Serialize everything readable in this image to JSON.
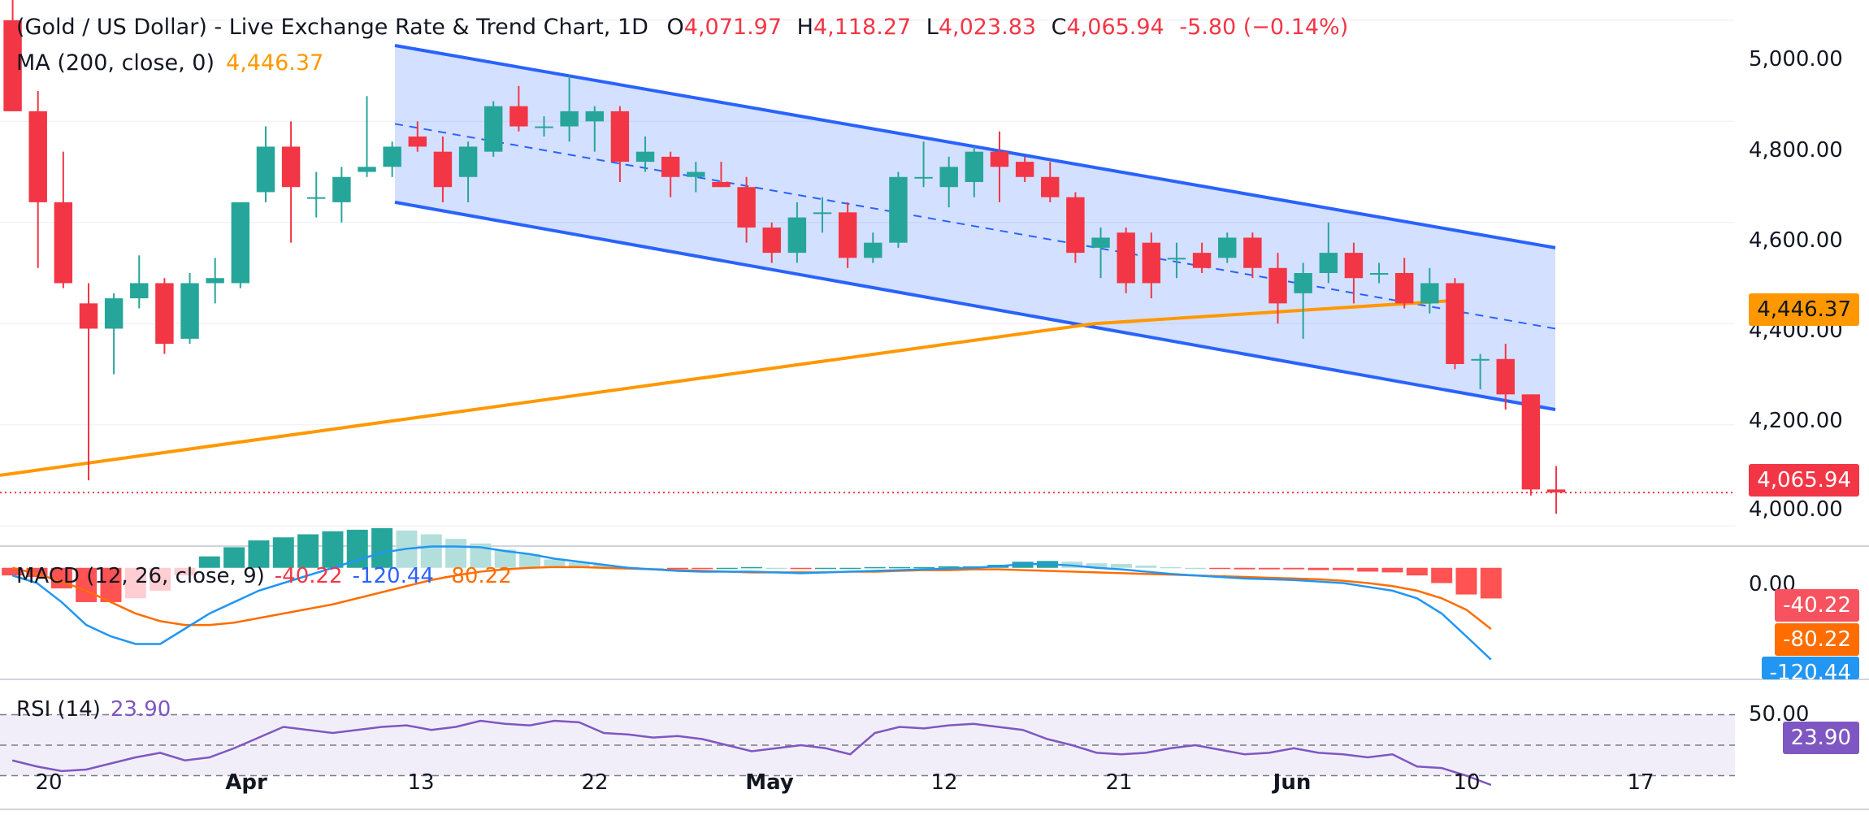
{
  "header": {
    "title": "(Gold / US Dollar) - Live Exchange Rate & Trend Chart, 1D",
    "open_label": "O",
    "open": "4,071.97",
    "high_label": "H",
    "high": "4,118.27",
    "low_label": "L",
    "low": "4,023.83",
    "close_label": "C",
    "close": "4,065.94",
    "change": "-5.80 (−0.14%)"
  },
  "ma": {
    "label": "MA (200, close, 0)",
    "value": "4,446.37"
  },
  "macd": {
    "label": "MACD (12, 26, close, 9)",
    "hist": "-40.22",
    "macd": "-120.44",
    "signal": "-80.22"
  },
  "rsi": {
    "label": "RSI (14)",
    "value": "23.90"
  },
  "price_tags": {
    "ma": "4,446.37",
    "last": "4,065.94",
    "macd_hist": "-40.22",
    "macd_signal": "-80.22",
    "macd_line": "-120.44",
    "rsi": "23.90"
  },
  "axis": {
    "y_ticks": [
      "5,000.00",
      "4,800.00",
      "4,600.00",
      "4,400.00",
      "4,200.00",
      "4,000.00"
    ],
    "macd_tick": "0.00",
    "rsi_tick": "50.00",
    "x_ticks": [
      {
        "label": "20",
        "bold": false
      },
      {
        "label": "Apr",
        "bold": true
      },
      {
        "label": "13",
        "bold": false
      },
      {
        "label": "22",
        "bold": false
      },
      {
        "label": "May",
        "bold": true
      },
      {
        "label": "12",
        "bold": false
      },
      {
        "label": "21",
        "bold": false
      },
      {
        "label": "Jun",
        "bold": true
      },
      {
        "label": "10",
        "bold": false
      },
      {
        "label": "17",
        "bold": false
      }
    ]
  },
  "colors": {
    "up": "#26a69a",
    "down": "#f23645",
    "ma": "#ff9800",
    "channel": "#2962ff",
    "macd": "#2196f3",
    "signal": "#ff6d00",
    "rsi": "#7e57c2"
  },
  "chart_data": {
    "type": "candlestick",
    "interval": "1D",
    "ylim": [
      3960,
      5040
    ],
    "candles": [
      {
        "o": 5000,
        "h": 5040,
        "l": 4820,
        "c": 4820
      },
      {
        "o": 4820,
        "h": 4860,
        "l": 4510,
        "c": 4640
      },
      {
        "o": 4640,
        "h": 4740,
        "l": 4470,
        "c": 4480
      },
      {
        "o": 4440,
        "h": 4480,
        "l": 4090,
        "c": 4390
      },
      {
        "o": 4390,
        "h": 4460,
        "l": 4300,
        "c": 4450
      },
      {
        "o": 4450,
        "h": 4535,
        "l": 4430,
        "c": 4480
      },
      {
        "o": 4480,
        "h": 4490,
        "l": 4340,
        "c": 4360
      },
      {
        "o": 4370,
        "h": 4500,
        "l": 4360,
        "c": 4480
      },
      {
        "o": 4480,
        "h": 4530,
        "l": 4440,
        "c": 4490
      },
      {
        "o": 4480,
        "h": 4640,
        "l": 4470,
        "c": 4640
      },
      {
        "o": 4660,
        "h": 4790,
        "l": 4640,
        "c": 4750
      },
      {
        "o": 4750,
        "h": 4800,
        "l": 4560,
        "c": 4670
      },
      {
        "o": 4650,
        "h": 4700,
        "l": 4610,
        "c": 4650
      },
      {
        "o": 4640,
        "h": 4710,
        "l": 4600,
        "c": 4690
      },
      {
        "o": 4700,
        "h": 4850,
        "l": 4690,
        "c": 4710
      },
      {
        "o": 4710,
        "h": 4760,
        "l": 4690,
        "c": 4750
      },
      {
        "o": 4770,
        "h": 4800,
        "l": 4740,
        "c": 4750
      },
      {
        "o": 4740,
        "h": 4770,
        "l": 4640,
        "c": 4670
      },
      {
        "o": 4690,
        "h": 4760,
        "l": 4640,
        "c": 4750
      },
      {
        "o": 4740,
        "h": 4840,
        "l": 4730,
        "c": 4830
      },
      {
        "o": 4830,
        "h": 4870,
        "l": 4780,
        "c": 4790
      },
      {
        "o": 4790,
        "h": 4810,
        "l": 4770,
        "c": 4790
      },
      {
        "o": 4790,
        "h": 4890,
        "l": 4760,
        "c": 4820
      },
      {
        "o": 4800,
        "h": 4830,
        "l": 4740,
        "c": 4820
      },
      {
        "o": 4820,
        "h": 4830,
        "l": 4680,
        "c": 4720
      },
      {
        "o": 4720,
        "h": 4770,
        "l": 4700,
        "c": 4740
      },
      {
        "o": 4730,
        "h": 4740,
        "l": 4650,
        "c": 4690
      },
      {
        "o": 4690,
        "h": 4720,
        "l": 4660,
        "c": 4700
      },
      {
        "o": 4680,
        "h": 4720,
        "l": 4670,
        "c": 4670
      },
      {
        "o": 4670,
        "h": 4690,
        "l": 4560,
        "c": 4590
      },
      {
        "o": 4590,
        "h": 4600,
        "l": 4520,
        "c": 4540
      },
      {
        "o": 4540,
        "h": 4640,
        "l": 4520,
        "c": 4610
      },
      {
        "o": 4620,
        "h": 4650,
        "l": 4580,
        "c": 4620
      },
      {
        "o": 4620,
        "h": 4640,
        "l": 4510,
        "c": 4530
      },
      {
        "o": 4530,
        "h": 4580,
        "l": 4520,
        "c": 4560
      },
      {
        "o": 4560,
        "h": 4700,
        "l": 4550,
        "c": 4690
      },
      {
        "o": 4690,
        "h": 4760,
        "l": 4670,
        "c": 4690
      },
      {
        "o": 4670,
        "h": 4730,
        "l": 4630,
        "c": 4710
      },
      {
        "o": 4680,
        "h": 4750,
        "l": 4650,
        "c": 4740
      },
      {
        "o": 4740,
        "h": 4780,
        "l": 4640,
        "c": 4710
      },
      {
        "o": 4720,
        "h": 4730,
        "l": 4680,
        "c": 4690
      },
      {
        "o": 4690,
        "h": 4720,
        "l": 4640,
        "c": 4650
      },
      {
        "o": 4650,
        "h": 4660,
        "l": 4520,
        "c": 4540
      },
      {
        "o": 4550,
        "h": 4590,
        "l": 4490,
        "c": 4570
      },
      {
        "o": 4580,
        "h": 4590,
        "l": 4460,
        "c": 4480
      },
      {
        "o": 4560,
        "h": 4580,
        "l": 4450,
        "c": 4480
      },
      {
        "o": 4530,
        "h": 4560,
        "l": 4490,
        "c": 4530
      },
      {
        "o": 4540,
        "h": 4560,
        "l": 4500,
        "c": 4510
      },
      {
        "o": 4530,
        "h": 4580,
        "l": 4520,
        "c": 4570
      },
      {
        "o": 4570,
        "h": 4580,
        "l": 4490,
        "c": 4510
      },
      {
        "o": 4510,
        "h": 4540,
        "l": 4400,
        "c": 4440
      },
      {
        "o": 4460,
        "h": 4520,
        "l": 4370,
        "c": 4500
      },
      {
        "o": 4500,
        "h": 4600,
        "l": 4480,
        "c": 4540
      },
      {
        "o": 4540,
        "h": 4560,
        "l": 4440,
        "c": 4490
      },
      {
        "o": 4500,
        "h": 4520,
        "l": 4480,
        "c": 4500
      },
      {
        "o": 4500,
        "h": 4530,
        "l": 4430,
        "c": 4440
      },
      {
        "o": 4440,
        "h": 4510,
        "l": 4420,
        "c": 4480
      },
      {
        "o": 4480,
        "h": 4490,
        "l": 4310,
        "c": 4320
      },
      {
        "o": 4330,
        "h": 4340,
        "l": 4270,
        "c": 4330
      },
      {
        "o": 4330,
        "h": 4360,
        "l": 4230,
        "c": 4260
      },
      {
        "o": 4260,
        "h": 4260,
        "l": 4060,
        "c": 4072
      },
      {
        "o": 4071.97,
        "h": 4118.27,
        "l": 4023.83,
        "c": 4065.94
      }
    ],
    "ma200": [
      4100,
      4200,
      4300,
      4400,
      4446.37
    ],
    "channel": {
      "upper": [
        4950,
        4550
      ],
      "lower": [
        4640,
        4230
      ],
      "middle": [
        4795,
        4390
      ]
    },
    "macd": {
      "ylim": [
        -140,
        20
      ],
      "macd_line": [
        -10,
        -20,
        -45,
        -75,
        -90,
        -100,
        -100,
        -80,
        -60,
        -45,
        -30,
        -20,
        -10,
        0,
        10,
        20,
        25,
        28,
        28,
        27,
        22,
        18,
        12,
        8,
        4,
        0,
        -2,
        -4,
        -5,
        -5,
        -5,
        -6,
        -7,
        -6,
        -5,
        -4,
        -3,
        -2,
        -1,
        0,
        2,
        5,
        5,
        3,
        0,
        -2,
        -5,
        -8,
        -10,
        -12,
        -14,
        -15,
        -16,
        -18,
        -20,
        -25,
        -30,
        -40,
        -60,
        -90,
        -120.44
      ],
      "signal_line": [
        0,
        -8,
        -18,
        -30,
        -45,
        -60,
        -70,
        -75,
        -75,
        -72,
        -66,
        -60,
        -54,
        -48,
        -40,
        -32,
        -24,
        -16,
        -10,
        -5,
        -2,
        0,
        1,
        1,
        0,
        -1,
        -2,
        -3,
        -4,
        -5,
        -6,
        -6,
        -6,
        -6,
        -5,
        -5,
        -4,
        -3,
        -3,
        -2,
        -2,
        -3,
        -4,
        -5,
        -6,
        -7,
        -8,
        -9,
        -10,
        -11,
        -12,
        -13,
        -14,
        -15,
        -17,
        -20,
        -24,
        -30,
        -40,
        -55,
        -80.22
      ],
      "histogram": [
        -10,
        -12,
        -27,
        -45,
        -45,
        -40,
        -30,
        -10,
        15,
        27,
        36,
        40,
        44,
        48,
        50,
        52,
        49,
        44,
        38,
        32,
        24,
        18,
        11,
        7,
        4,
        1,
        0,
        -1,
        -1,
        0,
        1,
        0,
        -1,
        0,
        0,
        1,
        1,
        1,
        2,
        2,
        4,
        8,
        9,
        8,
        6,
        5,
        3,
        1,
        0,
        -1,
        -2,
        -2,
        -2,
        -3,
        -3,
        -5,
        -6,
        -10,
        -20,
        -35,
        -40.22
      ]
    },
    "rsi": {
      "ylim": [
        10,
        90
      ],
      "levels": [
        70,
        50,
        30
      ],
      "values": [
        40,
        36,
        33,
        34,
        38,
        42,
        45,
        40,
        42,
        48,
        55,
        62,
        60,
        58,
        60,
        62,
        63,
        60,
        62,
        66,
        64,
        63,
        66,
        65,
        58,
        57,
        55,
        56,
        54,
        50,
        46,
        48,
        50,
        48,
        44,
        58,
        62,
        61,
        63,
        64,
        62,
        60,
        54,
        50,
        45,
        44,
        45,
        48,
        50,
        47,
        44,
        45,
        48,
        45,
        44,
        42,
        44,
        36,
        35,
        30,
        23.9
      ]
    }
  }
}
